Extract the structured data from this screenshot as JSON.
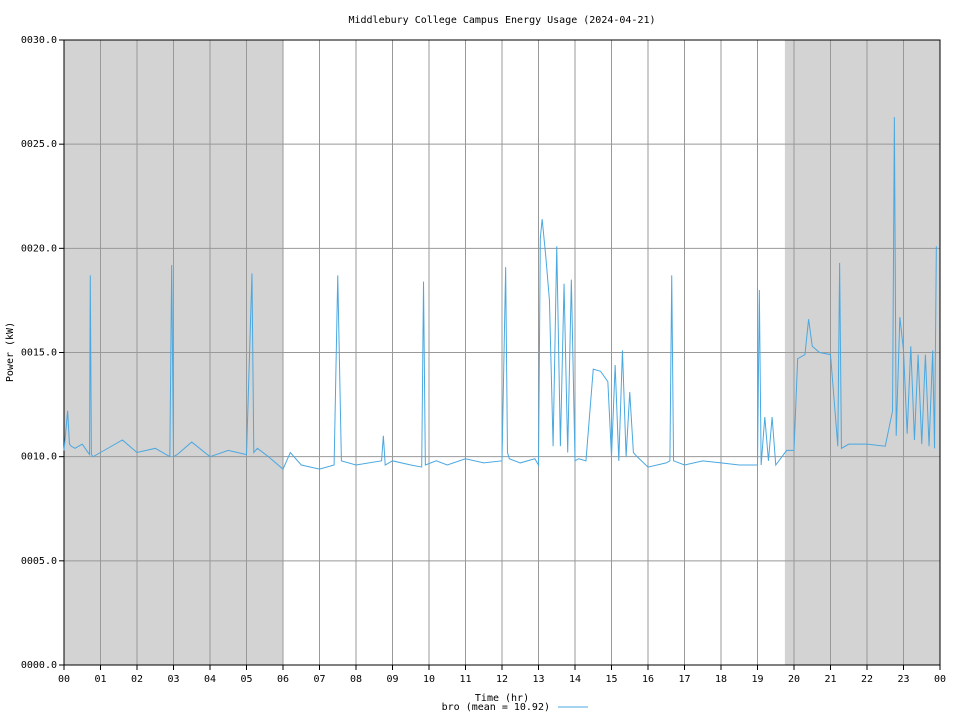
{
  "chart_data": {
    "type": "line",
    "title": "Middlebury College Campus Energy Usage (2024-04-21)",
    "xlabel": "Time (hr)",
    "ylabel": "Power (kW)",
    "x": [
      0,
      0.1,
      0.15,
      0.2,
      0.3,
      0.5,
      0.7,
      0.72,
      0.75,
      0.8,
      1.0,
      1.3,
      1.6,
      2.0,
      2.5,
      2.9,
      2.95,
      3.0,
      3.1,
      3.5,
      4.0,
      4.5,
      5.0,
      5.15,
      5.2,
      5.3,
      5.6,
      6.0,
      6.2,
      6.5,
      7.0,
      7.4,
      7.5,
      7.6,
      8.0,
      8.7,
      8.75,
      8.8,
      9.0,
      9.5,
      9.8,
      9.85,
      9.9,
      10.2,
      10.5,
      11.0,
      11.5,
      12.0,
      12.1,
      12.15,
      12.2,
      12.5,
      12.9,
      13.0,
      13.05,
      13.1,
      13.2,
      13.3,
      13.4,
      13.5,
      13.6,
      13.7,
      13.8,
      13.9,
      14.0,
      14.1,
      14.3,
      14.5,
      14.7,
      14.9,
      15.0,
      15.1,
      15.2,
      15.3,
      15.4,
      15.5,
      15.6,
      15.7,
      16.0,
      16.5,
      16.6,
      16.65,
      16.7,
      17.0,
      17.5,
      18.0,
      18.5,
      19.0,
      19.05,
      19.1,
      19.2,
      19.3,
      19.4,
      19.5,
      19.8,
      20.0,
      20.1,
      20.3,
      20.4,
      20.5,
      20.7,
      21.0,
      21.2,
      21.25,
      21.3,
      21.5,
      22.0,
      22.5,
      22.7,
      22.75,
      22.8,
      22.9,
      23.0,
      23.1,
      23.2,
      23.3,
      23.4,
      23.5,
      23.6,
      23.7,
      23.8,
      23.85,
      23.9
    ],
    "series": [
      {
        "name": "bro (mean = 10.92)",
        "color": "#4aa8e0",
        "values": [
          10.3,
          12.2,
          10.6,
          10.5,
          10.4,
          10.6,
          10.1,
          18.7,
          10.1,
          10.0,
          10.2,
          10.5,
          10.8,
          10.2,
          10.4,
          10.0,
          19.2,
          10.0,
          10.1,
          10.7,
          10.0,
          10.3,
          10.1,
          18.8,
          10.2,
          10.4,
          10.0,
          9.4,
          10.2,
          9.6,
          9.4,
          9.6,
          18.7,
          9.8,
          9.6,
          9.8,
          11.0,
          9.6,
          9.8,
          9.6,
          9.5,
          18.4,
          9.6,
          9.8,
          9.6,
          9.9,
          9.7,
          9.8,
          19.1,
          10.2,
          9.9,
          9.7,
          9.9,
          9.6,
          20.5,
          21.4,
          19.6,
          17.5,
          10.5,
          20.1,
          10.5,
          18.3,
          10.2,
          18.5,
          9.8,
          9.9,
          9.8,
          14.2,
          14.1,
          13.6,
          10.0,
          14.4,
          9.8,
          15.1,
          10.0,
          13.1,
          10.2,
          10.0,
          9.5,
          9.7,
          9.8,
          18.7,
          9.8,
          9.6,
          9.8,
          9.7,
          9.6,
          9.6,
          18.0,
          9.6,
          11.9,
          9.8,
          11.9,
          9.6,
          10.3,
          10.3,
          14.7,
          14.9,
          16.6,
          15.3,
          15.0,
          14.9,
          10.5,
          19.3,
          10.4,
          10.6,
          10.6,
          10.5,
          12.2,
          26.3,
          11.0,
          16.7,
          15.1,
          11.1,
          15.3,
          10.8,
          14.9,
          10.6,
          14.9,
          10.5,
          15.1,
          10.4,
          20.1
        ]
      }
    ],
    "xlim": [
      0,
      24
    ],
    "ylim": [
      0,
      30
    ],
    "xticks": [
      {
        "value": 0,
        "label": "00"
      },
      {
        "value": 1,
        "label": "01"
      },
      {
        "value": 2,
        "label": "02"
      },
      {
        "value": 3,
        "label": "03"
      },
      {
        "value": 4,
        "label": "04"
      },
      {
        "value": 5,
        "label": "05"
      },
      {
        "value": 6,
        "label": "06"
      },
      {
        "value": 7,
        "label": "07"
      },
      {
        "value": 8,
        "label": "08"
      },
      {
        "value": 9,
        "label": "09"
      },
      {
        "value": 10,
        "label": "10"
      },
      {
        "value": 11,
        "label": "11"
      },
      {
        "value": 12,
        "label": "12"
      },
      {
        "value": 13,
        "label": "13"
      },
      {
        "value": 14,
        "label": "14"
      },
      {
        "value": 15,
        "label": "15"
      },
      {
        "value": 16,
        "label": "16"
      },
      {
        "value": 17,
        "label": "17"
      },
      {
        "value": 18,
        "label": "18"
      },
      {
        "value": 19,
        "label": "19"
      },
      {
        "value": 20,
        "label": "20"
      },
      {
        "value": 21,
        "label": "21"
      },
      {
        "value": 22,
        "label": "22"
      },
      {
        "value": 23,
        "label": "23"
      },
      {
        "value": 24,
        "label": "00"
      }
    ],
    "yticks": [
      {
        "value": 0,
        "label": "0000.0"
      },
      {
        "value": 5,
        "label": "0005.0"
      },
      {
        "value": 10,
        "label": "0010.0"
      },
      {
        "value": 15,
        "label": "0015.0"
      },
      {
        "value": 20,
        "label": "0020.0"
      },
      {
        "value": 25,
        "label": "0025.0"
      },
      {
        "value": 30,
        "label": "0030.0"
      }
    ],
    "shaded_regions": [
      [
        0,
        6
      ],
      [
        19.75,
        24
      ]
    ],
    "shade_color": "#d3d3d3",
    "grid": true
  }
}
